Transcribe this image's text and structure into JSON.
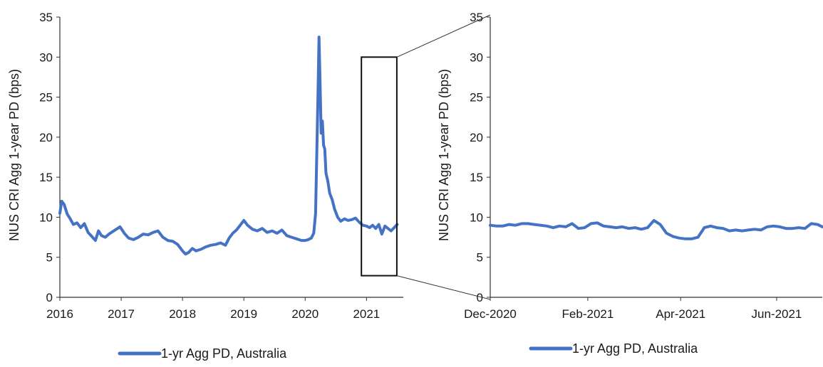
{
  "chart_data": [
    {
      "type": "line",
      "ylabel": "NUS CRI Agg 1-year PD (bps)",
      "ylim": [
        0,
        35
      ],
      "yticks": [
        0,
        5,
        10,
        15,
        20,
        25,
        30,
        35
      ],
      "xlim": [
        2016,
        2021.6
      ],
      "xticks": [
        2016,
        2017,
        2018,
        2019,
        2020,
        2021
      ],
      "xtick_labels": [
        "2016",
        "2017",
        "2018",
        "2019",
        "2020",
        "2021"
      ],
      "legend": "bottom",
      "color": "#4472c4",
      "series": [
        {
          "name": "1-yr Agg PD, Australia",
          "x": [
            2016.0,
            2016.03,
            2016.07,
            2016.12,
            2016.17,
            2016.22,
            2016.28,
            2016.34,
            2016.4,
            2016.46,
            2016.52,
            2016.58,
            2016.63,
            2016.68,
            2016.74,
            2016.8,
            2016.86,
            2016.92,
            2016.98,
            2017.05,
            2017.12,
            2017.2,
            2017.28,
            2017.36,
            2017.44,
            2017.52,
            2017.6,
            2017.68,
            2017.76,
            2017.84,
            2017.92,
            2018.0,
            2018.05,
            2018.1,
            2018.16,
            2018.22,
            2018.3,
            2018.38,
            2018.46,
            2018.54,
            2018.62,
            2018.7,
            2018.76,
            2018.82,
            2018.88,
            2018.94,
            2019.0,
            2019.06,
            2019.14,
            2019.22,
            2019.3,
            2019.38,
            2019.46,
            2019.54,
            2019.62,
            2019.7,
            2019.78,
            2019.86,
            2019.94,
            2020.0,
            2020.05,
            2020.1,
            2020.14,
            2020.17,
            2020.19,
            2020.21,
            2020.225,
            2020.24,
            2020.26,
            2020.28,
            2020.3,
            2020.32,
            2020.34,
            2020.37,
            2020.4,
            2020.44,
            2020.48,
            2020.53,
            2020.58,
            2020.64,
            2020.7,
            2020.76,
            2020.82,
            2020.88,
            2020.94,
            2021.0,
            2021.05,
            2021.1,
            2021.15,
            2021.2,
            2021.25,
            2021.3,
            2021.35,
            2021.4,
            2021.45,
            2021.5
          ],
          "values": [
            10.5,
            12.0,
            11.6,
            10.4,
            9.8,
            9.1,
            9.3,
            8.7,
            9.2,
            8.1,
            7.6,
            7.1,
            8.3,
            7.7,
            7.5,
            7.9,
            8.2,
            8.5,
            8.8,
            8.0,
            7.4,
            7.2,
            7.5,
            7.9,
            7.8,
            8.1,
            8.3,
            7.5,
            7.1,
            7.0,
            6.6,
            5.8,
            5.4,
            5.6,
            6.1,
            5.8,
            6.0,
            6.3,
            6.5,
            6.6,
            6.8,
            6.5,
            7.4,
            8.0,
            8.4,
            9.0,
            9.6,
            9.0,
            8.5,
            8.3,
            8.6,
            8.1,
            8.3,
            8.0,
            8.4,
            7.7,
            7.5,
            7.3,
            7.1,
            7.1,
            7.2,
            7.4,
            8.0,
            10.5,
            18.0,
            26.0,
            32.5,
            28.0,
            20.5,
            22.0,
            19.0,
            18.5,
            15.5,
            14.5,
            13.0,
            12.2,
            11.0,
            10.0,
            9.5,
            9.8,
            9.6,
            9.7,
            9.9,
            9.4,
            9.0,
            8.9,
            8.7,
            9.0,
            8.6,
            9.1,
            7.9,
            8.9,
            8.6,
            8.3,
            8.7,
            9.1
          ]
        }
      ]
    },
    {
      "type": "line",
      "ylabel": "NUS CRI Agg 1-year PD (bps)",
      "ylim": [
        0,
        35
      ],
      "yticks": [
        0,
        5,
        10,
        15,
        20,
        25,
        30,
        35
      ],
      "xlim": [
        "2020-12-01",
        "2021-06-30"
      ],
      "xticks": [
        "2020-12-01",
        "2021-02-01",
        "2021-04-01",
        "2021-06-01"
      ],
      "xtick_labels": [
        "Dec-2020",
        "Feb-2021",
        "Apr-2021",
        "Jun-2021"
      ],
      "legend": "bottom",
      "color": "#4472c4",
      "series": [
        {
          "name": "1-yr Agg PD, Australia",
          "x": [
            "2020-12-01",
            "2020-12-05",
            "2020-12-09",
            "2020-12-13",
            "2020-12-17",
            "2020-12-21",
            "2020-12-25",
            "2020-12-29",
            "2021-01-02",
            "2021-01-06",
            "2021-01-10",
            "2021-01-14",
            "2021-01-18",
            "2021-01-22",
            "2021-01-26",
            "2021-01-30",
            "2021-02-03",
            "2021-02-07",
            "2021-02-11",
            "2021-02-15",
            "2021-02-19",
            "2021-02-23",
            "2021-02-27",
            "2021-03-03",
            "2021-03-07",
            "2021-03-11",
            "2021-03-15",
            "2021-03-19",
            "2021-03-23",
            "2021-03-27",
            "2021-03-31",
            "2021-04-04",
            "2021-04-08",
            "2021-04-12",
            "2021-04-16",
            "2021-04-20",
            "2021-04-24",
            "2021-04-28",
            "2021-05-02",
            "2021-05-06",
            "2021-05-10",
            "2021-05-14",
            "2021-05-18",
            "2021-05-22",
            "2021-05-26",
            "2021-05-30",
            "2021-06-03",
            "2021-06-07",
            "2021-06-11",
            "2021-06-15",
            "2021-06-19",
            "2021-06-23",
            "2021-06-27",
            "2021-06-30"
          ],
          "values": [
            9.0,
            8.9,
            8.9,
            9.1,
            9.0,
            9.2,
            9.2,
            9.1,
            9.0,
            8.9,
            8.7,
            8.9,
            8.8,
            9.2,
            8.6,
            8.7,
            9.2,
            9.3,
            8.9,
            8.8,
            8.7,
            8.8,
            8.6,
            8.7,
            8.5,
            8.7,
            9.6,
            9.1,
            8.0,
            7.6,
            7.4,
            7.3,
            7.3,
            7.5,
            8.7,
            8.9,
            8.7,
            8.6,
            8.3,
            8.4,
            8.3,
            8.4,
            8.5,
            8.4,
            8.8,
            8.9,
            8.8,
            8.6,
            8.6,
            8.7,
            8.6,
            9.2,
            9.1,
            8.8
          ]
        }
      ]
    }
  ]
}
